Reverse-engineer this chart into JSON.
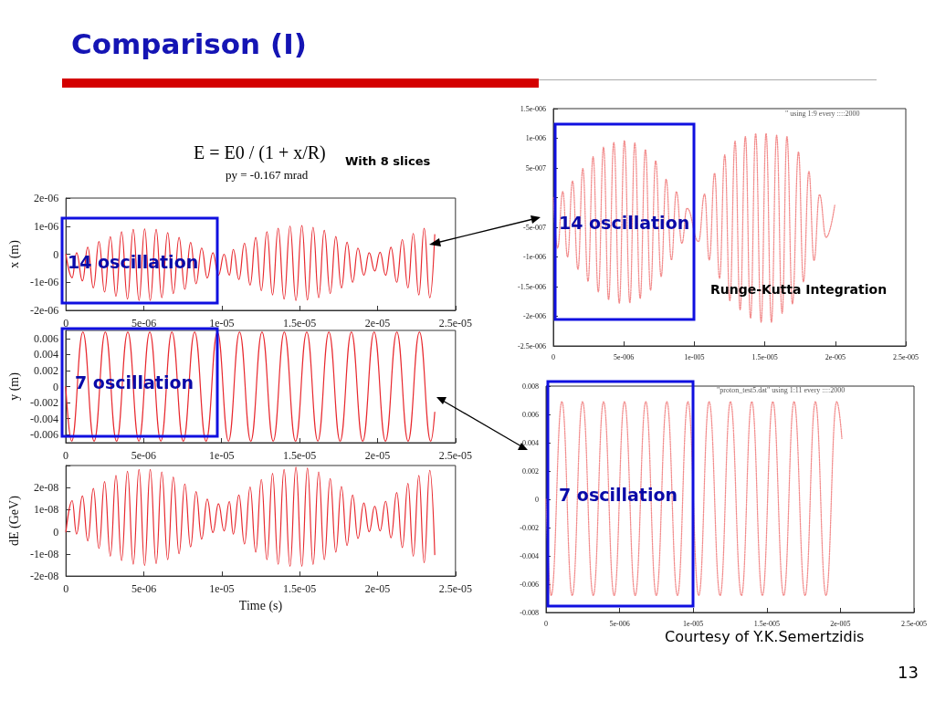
{
  "chart_data": [
    {
      "type": "line",
      "title": "Comparison (I)",
      "subtitle": "E = E0 / (1 + x/R)",
      "annotations": [
        "py = -0.167 mrad",
        "With 8 slices",
        "14 oscillation"
      ],
      "ylabel": "x (m)",
      "color": "#e8282e",
      "line_style": "solid",
      "marker": "none",
      "xlim": [
        0,
        2.5e-05
      ],
      "ylim": [
        -2e-06,
        2e-06
      ],
      "xticks": [
        {
          "value": 0,
          "label": "0"
        },
        {
          "value": 5e-06,
          "label": "5e-06"
        },
        {
          "value": 1e-05,
          "label": "1e-05"
        },
        {
          "value": 1.5e-05,
          "label": "1.5e-05"
        },
        {
          "value": 2e-05,
          "label": "2e-05"
        },
        {
          "value": 2.5e-05,
          "label": "2.5e-05"
        }
      ],
      "yticks": [
        {
          "value": -2e-06,
          "label": "-2e-06"
        },
        {
          "value": -1e-06,
          "label": "-1e-06"
        },
        0,
        {
          "value": 1e-06,
          "label": "1e-06"
        },
        {
          "value": 2e-06,
          "label": "2e-06"
        }
      ],
      "x": [
        0,
        4e-07,
        6.8e-07,
        1.06e-06,
        1.4e-06,
        1.76e-06,
        2.12e-06,
        2.48e-06,
        2.85e-06,
        3.21e-06,
        3.57e-06,
        3.95e-06,
        4.32e-06,
        4.69e-06,
        5.05e-06,
        5.41e-06,
        5.79e-06,
        6.15e-06,
        6.53e-06,
        6.89e-06,
        7.26e-06,
        7.63e-06,
        8e-06,
        8.35e-06,
        8.71e-06,
        9.07e-06,
        9.43e-06,
        9.79e-06,
        1.015e-05,
        1.049e-05,
        1.074e-05,
        1.11e-05,
        1.146e-05,
        1.182e-05,
        1.218e-05,
        1.254e-05,
        1.29e-05,
        1.326e-05,
        1.362e-05,
        1.4e-05,
        1.438e-05,
        1.476e-05,
        1.514e-05,
        1.55e-05,
        1.586e-05,
        1.622e-05,
        1.658e-05,
        1.696e-05,
        1.732e-05,
        1.768e-05,
        1.804e-05,
        1.84e-05,
        1.874e-05,
        1.912e-05,
        1.946e-05,
        1.982e-05,
        2.016e-05,
        2.052e-05,
        2.086e-05,
        2.123e-05,
        2.159e-05,
        2.195e-05,
        2.229e-05,
        2.265e-05,
        2.299e-05,
        2.335e-05,
        2.367e-05
      ],
      "values": [
        0,
        -8.4e-07,
        5e-08,
        -9.5e-07,
        2.5e-07,
        -1.2e-06,
        4.5e-07,
        -1.35e-06,
        6.2e-07,
        -1.5e-06,
        8e-07,
        -1.6e-06,
        8.8e-07,
        -1.65e-06,
        9e-07,
        -1.65e-06,
        8.8e-07,
        -1.55e-06,
        7.7e-07,
        -1.4e-06,
        6e-07,
        -1.25e-06,
        4.2e-07,
        -1.05e-06,
        2.2e-07,
        -8.5e-07,
        5e-08,
        -7.5e-07,
        0,
        -7.5e-07,
        1.7e-07,
        -9e-07,
        3.9e-07,
        -1.1e-06,
        6e-07,
        -1.3e-06,
        8e-07,
        -1.45e-06,
        9.2e-07,
        -1.6e-06,
        1e-06,
        -1.65e-06,
        1.02e-06,
        -1.63e-06,
        9.6e-07,
        -1.55e-06,
        8.5e-07,
        -1.4e-06,
        6.3e-07,
        -1.2e-06,
        4.3e-07,
        -1e-06,
        2.2e-07,
        -7.5e-07,
        5e-08,
        -6e-07,
        7e-08,
        -7.5e-07,
        2.5e-07,
        -1e-06,
        5.2e-07,
        -1.2e-06,
        7.4e-07,
        -1.45e-06,
        9.2e-07,
        -1.55e-06,
        7e-07
      ]
    },
    {
      "type": "line",
      "annotations": [
        "7 oscillation"
      ],
      "ylabel": "y (m)",
      "color": "#e8282e",
      "line_style": "solid",
      "marker": "none",
      "xlim": [
        0,
        2.5e-05
      ],
      "ylim": [
        -0.007,
        0.007
      ],
      "xticks": [
        {
          "value": 0,
          "label": "0"
        },
        {
          "value": 5e-06,
          "label": "5e-06"
        },
        {
          "value": 1e-05,
          "label": "1e-05"
        },
        {
          "value": 1.5e-05,
          "label": "1.5e-05"
        },
        {
          "value": 2e-05,
          "label": "2e-05"
        },
        {
          "value": 2.5e-05,
          "label": "2.5e-05"
        }
      ],
      "yticks": [
        -0.006,
        -0.004,
        -0.002,
        0,
        0.002,
        0.004,
        0.006
      ],
      "x": [
        0,
        3.8e-07,
        1.1e-06,
        1.82e-06,
        2.54e-06,
        3.26e-06,
        3.98e-06,
        4.69e-06,
        5.39e-06,
        6.1e-06,
        6.81e-06,
        7.54e-06,
        8.27e-06,
        9e-06,
        9.73e-06,
        1.044e-05,
        1.115e-05,
        1.187e-05,
        1.259e-05,
        1.331e-05,
        1.402e-05,
        1.474e-05,
        1.546e-05,
        1.617e-05,
        1.688e-05,
        1.76e-05,
        1.832e-05,
        1.905e-05,
        1.978e-05,
        2.051e-05,
        2.124e-05,
        2.196e-05,
        2.269e-05,
        2.341e-05,
        2.367e-05
      ],
      "values": [
        0,
        -0.0068,
        0.0068,
        -0.0068,
        0.0068,
        -0.0068,
        0.0068,
        -0.0068,
        0.0068,
        -0.0068,
        0.0068,
        -0.0068,
        0.0068,
        -0.0068,
        0.0068,
        -0.0068,
        0.0068,
        -0.0068,
        0.0068,
        -0.0068,
        0.0068,
        -0.0068,
        0.0068,
        -0.0068,
        0.0068,
        -0.0068,
        0.0068,
        -0.0068,
        0.0068,
        -0.0068,
        0.0068,
        -0.0068,
        0.0068,
        -0.0068,
        -0.0032
      ]
    },
    {
      "type": "line",
      "xlabel": "Time (s)",
      "ylabel": "dE (GeV)",
      "color": "#e8282e",
      "line_style": "solid",
      "marker": "none",
      "xlim": [
        0,
        2.5e-05
      ],
      "ylim": [
        -2e-08,
        3e-08
      ],
      "xticks": [
        {
          "value": 0,
          "label": "0"
        },
        {
          "value": 5e-06,
          "label": "5e-06"
        },
        {
          "value": 1e-05,
          "label": "1e-05"
        },
        {
          "value": 1.5e-05,
          "label": "1.5e-05"
        },
        {
          "value": 2e-05,
          "label": "2e-05"
        },
        {
          "value": 2.5e-05,
          "label": "2.5e-05"
        }
      ],
      "yticks": [
        {
          "value": -2e-08,
          "label": "-2e-08"
        },
        {
          "value": -1e-08,
          "label": "-1e-08"
        },
        0,
        {
          "value": 1e-08,
          "label": "1e-08"
        },
        {
          "value": 2e-08,
          "label": "2e-08"
        },
        {
          "value": 3e-08,
          "label": null
        }
      ],
      "x": [
        0,
        4e-07,
        6.8e-07,
        1.06e-06,
        1.4e-06,
        1.76e-06,
        2.12e-06,
        2.48e-06,
        2.85e-06,
        3.21e-06,
        3.57e-06,
        3.95e-06,
        4.32e-06,
        4.69e-06,
        5.05e-06,
        5.41e-06,
        5.79e-06,
        6.15e-06,
        6.53e-06,
        6.89e-06,
        7.26e-06,
        7.63e-06,
        8e-06,
        8.35e-06,
        8.71e-06,
        9.07e-06,
        9.43e-06,
        9.79e-06,
        1.015e-05,
        1.049e-05,
        1.074e-05,
        1.11e-05,
        1.146e-05,
        1.182e-05,
        1.218e-05,
        1.254e-05,
        1.29e-05,
        1.326e-05,
        1.362e-05,
        1.4e-05,
        1.438e-05,
        1.476e-05,
        1.514e-05,
        1.55e-05,
        1.586e-05,
        1.622e-05,
        1.658e-05,
        1.696e-05,
        1.732e-05,
        1.768e-05,
        1.804e-05,
        1.84e-05,
        1.874e-05,
        1.912e-05,
        1.946e-05,
        1.982e-05,
        2.016e-05,
        2.052e-05,
        2.086e-05,
        2.123e-05,
        2.159e-05,
        2.195e-05,
        2.229e-05,
        2.265e-05,
        2.299e-05,
        2.335e-05,
        2.367e-05
      ],
      "values": [
        0,
        1.41e-08,
        -1e-09,
        1.62e-08,
        -4.1e-09,
        1.96e-08,
        -7.5e-09,
        2.27e-08,
        -1.1e-08,
        2.55e-08,
        -1.3e-08,
        2.74e-08,
        -1.47e-08,
        2.82e-08,
        -1.53e-08,
        2.82e-08,
        -1.44e-08,
        2.71e-08,
        -1.26e-08,
        2.48e-08,
        -9.9e-09,
        2.16e-08,
        -6.8e-09,
        1.82e-08,
        -3.3e-09,
        1.48e-08,
        -3e-10,
        1.27e-08,
        4e-10,
        1.37e-08,
        -1e-09,
        1.66e-08,
        -5.5e-09,
        2.03e-08,
        -9.2e-09,
        2.37e-08,
        -1.26e-08,
        2.64e-08,
        -1.47e-08,
        2.82e-08,
        -1.56e-08,
        2.92e-08,
        -1.56e-08,
        2.88e-08,
        -1.48e-08,
        2.71e-08,
        -1.26e-08,
        2.41e-08,
        -9.2e-09,
        2.05e-08,
        -6.2e-09,
        1.66e-08,
        -3e-09,
        1.3e-08,
        0,
        1.16e-08,
        4e-10,
        1.38e-08,
        -2.7e-09,
        1.78e-08,
        -7.1e-09,
        2.19e-08,
        -1.1e-08,
        2.55e-08,
        -1.4e-08,
        2.78e-08,
        -1.03e-08
      ]
    },
    {
      "type": "line",
      "annotations": [
        "14 oscillation",
        "Runge-Kutta Integration",
        "\" using 1:9 every ::::2000"
      ],
      "color": "#f28b8b",
      "line_style": "dotted",
      "marker": "none",
      "xlim": [
        0,
        2.5e-05
      ],
      "ylim": [
        -2.5e-06,
        1.5e-06
      ],
      "xticks": [
        {
          "value": 0,
          "label": "0"
        },
        {
          "value": 5e-06,
          "label": "5e-006"
        },
        {
          "value": 1e-05,
          "label": "1e-005"
        },
        {
          "value": 1.5e-05,
          "label": "1.5e-005"
        },
        {
          "value": 2e-05,
          "label": "2e-005"
        },
        {
          "value": 2.5e-05,
          "label": "2.5e-005"
        }
      ],
      "yticks": [
        {
          "value": -2.5e-06,
          "label": "-2.5e-006"
        },
        {
          "value": -2e-06,
          "label": "-2e-006"
        },
        {
          "value": -1.5e-06,
          "label": "-1.5e-006"
        },
        {
          "value": -1e-06,
          "label": "-1e-006"
        },
        {
          "value": -5e-07,
          "label": "-5e-007"
        },
        {
          "value": 0,
          "label": null
        },
        {
          "value": 5e-07,
          "label": "5e-007"
        },
        {
          "value": 1e-06,
          "label": "1e-006"
        },
        {
          "value": 1.5e-06,
          "label": "1.5e-006"
        }
      ],
      "x": [
        0,
        3e-07,
        6.7e-07,
        1.01e-06,
        1.36e-06,
        1.75e-06,
        2.09e-06,
        2.46e-06,
        2.82e-06,
        3.19e-06,
        3.56e-06,
        3.92e-06,
        4.29e-06,
        4.68e-06,
        5.04e-06,
        5.43e-06,
        5.78e-06,
        6.16e-06,
        6.53e-06,
        6.9e-06,
        7.26e-06,
        7.65e-06,
        8e-06,
        8.38e-06,
        8.73e-06,
        9.12e-06,
        9.48e-06,
        1.03e-05,
        1.073e-05,
        1.106e-05,
        1.144e-05,
        1.179e-05,
        1.216e-05,
        1.252e-05,
        1.289e-05,
        1.325e-05,
        1.362e-05,
        1.399e-05,
        1.435e-05,
        1.474e-05,
        1.509e-05,
        1.547e-05,
        1.584e-05,
        1.623e-05,
        1.657e-05,
        1.696e-05,
        1.739e-05,
        1.774e-05,
        1.813e-05,
        1.849e-05,
        1.888e-05,
        1.935e-05,
        1.996e-05
      ],
      "values": [
        0,
        -8.5e-07,
        1e-07,
        -1e-06,
        2.8e-07,
        -1.21e-06,
        4.9e-07,
        -1.41e-06,
        6.9e-07,
        -1.59e-06,
        8.5e-07,
        -1.72e-06,
        9.3e-07,
        -1.78e-06,
        9.6e-07,
        -1.77e-06,
        9.2e-07,
        -1.7e-06,
        8.1e-07,
        -1.56e-06,
        6.2e-07,
        -1.33e-06,
        3.1e-07,
        -1.05e-06,
        1e-07,
        -7.7e-07,
        -1.8e-07,
        -7.4e-07,
        6e-08,
        -1.05e-06,
        4.1e-07,
        -1.36e-06,
        7.2e-07,
        -1.74e-06,
        9.5e-07,
        -1.89e-06,
        1.03e-06,
        -2.03e-06,
        1.08e-06,
        -2.1e-06,
        1.08e-06,
        -2.1e-06,
        1.05e-06,
        -1.95e-06,
        1.03e-06,
        -1.79e-06,
        7.7e-07,
        -1.42e-06,
        4.4e-07,
        -1.06e-06,
        5e-08,
        -6.7e-07,
        -1.3e-07
      ]
    },
    {
      "type": "line",
      "annotations": [
        "7 oscillation",
        "\"proton_test5.dat\" using 1:11 every ::::2000",
        "Courtesy of Y.K.Semertzidis",
        "13"
      ],
      "color": "#f28b8b",
      "line_style": "dotted",
      "marker": "none",
      "xlim": [
        0,
        2.5e-05
      ],
      "ylim": [
        -0.008,
        0.008
      ],
      "xticks": [
        {
          "value": 0,
          "label": "0"
        },
        {
          "value": 5e-06,
          "label": "5e-006"
        },
        {
          "value": 1e-05,
          "label": "1e-005"
        },
        {
          "value": 1.5e-05,
          "label": "1.5e-005"
        },
        {
          "value": 2e-05,
          "label": "2e-005"
        },
        {
          "value": 2.5e-05,
          "label": "2.5e-005"
        }
      ],
      "yticks": [
        -0.008,
        -0.006,
        -0.004,
        -0.002,
        0,
        0.002,
        0.004,
        0.006,
        0.008
      ],
      "x": [
        0,
        3.5e-07,
        1.08e-06,
        1.78e-06,
        2.48e-06,
        3.21e-06,
        3.91e-06,
        4.63e-06,
        5.33e-06,
        6.06e-06,
        6.78e-06,
        7.49e-06,
        8.21e-06,
        8.93e-06,
        9.64e-06,
        1.038e-05,
        1.108e-05,
        1.183e-05,
        1.253e-05,
        1.328e-05,
        1.398e-05,
        1.47e-05,
        1.541e-05,
        1.615e-05,
        1.685e-05,
        1.76e-05,
        1.83e-05,
        1.902e-05,
        1.975e-05,
        2.01e-05
      ],
      "values": [
        0,
        -0.0068,
        0.0069,
        -0.0068,
        0.0069,
        -0.0068,
        0.0069,
        -0.0068,
        0.0069,
        -0.0068,
        0.0069,
        -0.0068,
        0.0069,
        -0.0068,
        0.0069,
        -0.0068,
        0.0069,
        -0.0068,
        0.0069,
        -0.0068,
        0.0069,
        -0.0068,
        0.0069,
        -0.0068,
        0.0069,
        -0.0068,
        0.0069,
        -0.0068,
        0.0069,
        0.0043
      ]
    }
  ]
}
